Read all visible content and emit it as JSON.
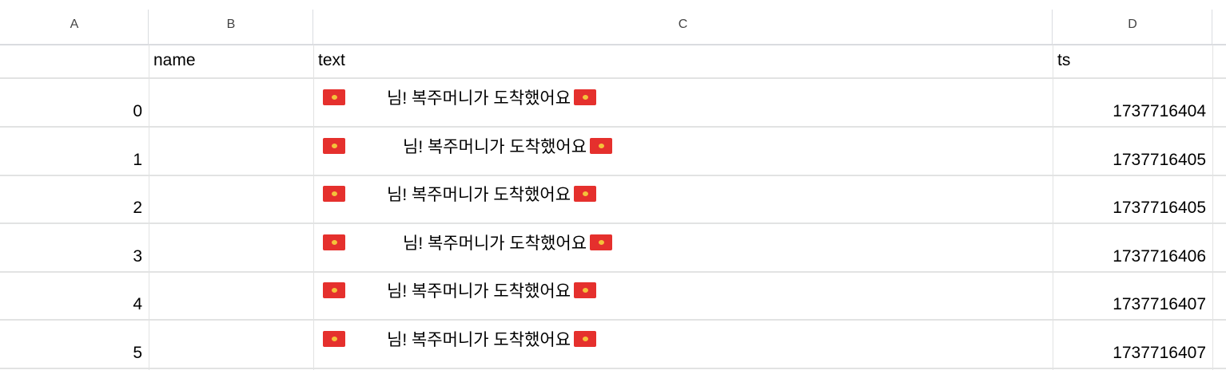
{
  "columns": [
    "A",
    "B",
    "C",
    "D"
  ],
  "header_row": {
    "a": "",
    "b": "name",
    "c": "text",
    "d": "ts"
  },
  "rows": [
    {
      "index": "0",
      "name": "",
      "message": "님! 복주머니가 도착했어요",
      "ts": "1737716404",
      "indent": 52
    },
    {
      "index": "1",
      "name": "",
      "message": "님! 복주머니가 도착했어요",
      "ts": "1737716405",
      "indent": 72
    },
    {
      "index": "2",
      "name": "",
      "message": "님! 복주머니가 도착했어요",
      "ts": "1737716405",
      "indent": 52
    },
    {
      "index": "3",
      "name": "",
      "message": "님! 복주머니가 도착했어요",
      "ts": "1737716406",
      "indent": 72
    },
    {
      "index": "4",
      "name": "",
      "message": "님! 복주머니가 도착했어요",
      "ts": "1737716407",
      "indent": 52
    },
    {
      "index": "5",
      "name": "",
      "message": "님! 복주머니가 도착했어요",
      "ts": "1737716407",
      "indent": 52
    }
  ],
  "icons": {
    "envelope": "red-envelope-icon"
  },
  "colors": {
    "envelope": "#e5302d",
    "grid": "#e2e3e3",
    "header_border": "#dadce0"
  }
}
